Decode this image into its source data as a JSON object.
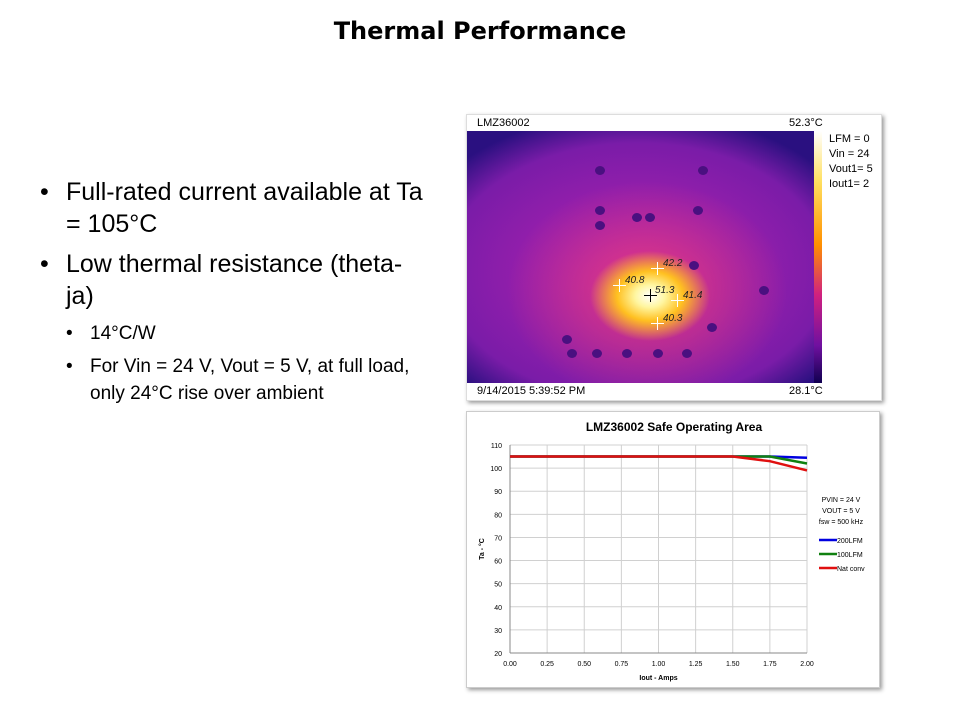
{
  "title": "Thermal Performance",
  "bullets": [
    {
      "text": "Full-rated current available at Ta = 105°C"
    },
    {
      "text": "Low thermal resistance (theta-ja)",
      "sub": [
        "14°C/W",
        "For Vin  = 24 V, Vout =  5 V, at full load, only 24°C rise over ambient"
      ]
    }
  ],
  "thermal": {
    "device": "LMZ36002",
    "max_temp": "52.3°C",
    "min_temp": "28.1°C",
    "timestamp": "9/14/2015 5:39:52 PM",
    "conditions": [
      "LFM = 0",
      "Vin = 24",
      "Vout1= 5",
      "Iout1= 2"
    ],
    "markers": [
      "51.3",
      "42.2",
      "40.8",
      "41.4",
      "40.3"
    ]
  },
  "chart_data": {
    "type": "line",
    "title": "LMZ36002 Safe Operating Area",
    "xlabel": "Iout - Amps",
    "ylabel": "Ta - °C",
    "xlim": [
      0,
      2
    ],
    "ylim": [
      20,
      110
    ],
    "xticks": [
      "0.00",
      "0.25",
      "0.50",
      "0.75",
      "1.00",
      "1.25",
      "1.50",
      "1.75",
      "2.00"
    ],
    "yticks": [
      "20",
      "30",
      "40",
      "50",
      "60",
      "70",
      "80",
      "90",
      "100",
      "110"
    ],
    "grid": true,
    "annotations": [
      "PVIN = 24 V",
      "VOUT = 5 V",
      "fsw = 500 kHz"
    ],
    "legend_position": "right",
    "series": [
      {
        "name": "200LFM",
        "color": "#0000e0",
        "x": [
          0,
          1.5,
          1.75,
          2.0
        ],
        "y": [
          105,
          105,
          105,
          104.5
        ]
      },
      {
        "name": "100LFM",
        "color": "#108010",
        "x": [
          0,
          1.5,
          1.75,
          2.0
        ],
        "y": [
          105,
          105,
          105,
          102
        ]
      },
      {
        "name": "Nat conv",
        "color": "#e01010",
        "x": [
          0,
          1.5,
          1.75,
          2.0
        ],
        "y": [
          105,
          105,
          103,
          99
        ]
      }
    ]
  }
}
